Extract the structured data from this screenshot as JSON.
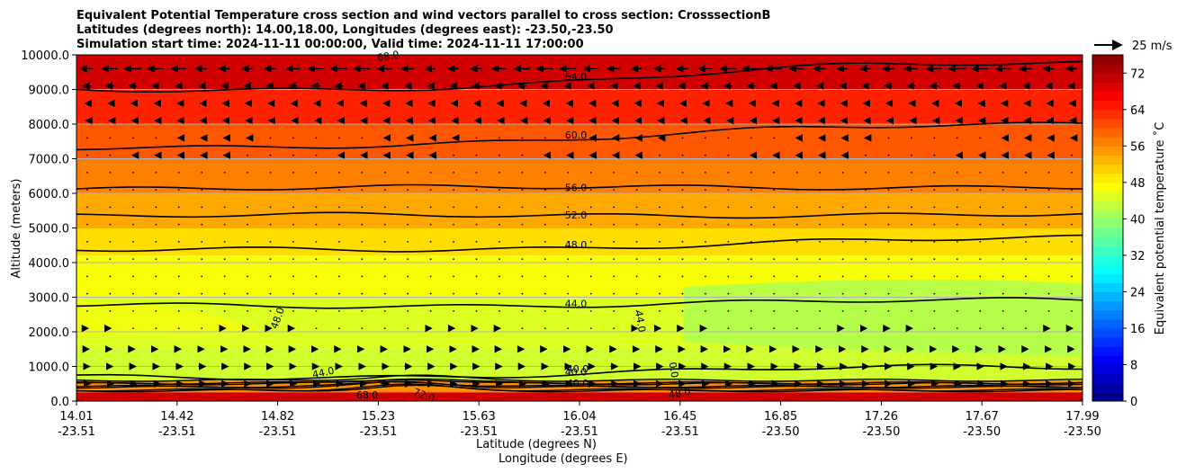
{
  "chart_data": {
    "type": "contourf",
    "title_lines": [
      "Equivalent Potential Temperature cross section and wind vectors parallel to cross section: CrosssectionB",
      "Latitudes (degrees north): 14.00,18.00, Longitudes (degrees east): -23.50,-23.50",
      "Simulation start time: 2024-11-11 00:00:00, Valid time: 2024-11-11 17:00:00"
    ],
    "xlabel_lines": [
      "Latitude (degrees N)",
      "Longitude (degrees E)"
    ],
    "ylabel": "Altitude (meters)",
    "ylim": [
      0,
      10000
    ],
    "y_ticks": [
      0,
      1000,
      2000,
      3000,
      4000,
      5000,
      6000,
      7000,
      8000,
      9000,
      10000
    ],
    "y_tick_labels": [
      "0.0",
      "1000.0",
      "2000.0",
      "3000.0",
      "4000.0",
      "5000.0",
      "6000.0",
      "7000.0",
      "8000.0",
      "9000.0",
      "10000.0"
    ],
    "x_ticks": [
      {
        "lat": "14.01",
        "lon": "-23.51"
      },
      {
        "lat": "14.42",
        "lon": "-23.51"
      },
      {
        "lat": "14.82",
        "lon": "-23.51"
      },
      {
        "lat": "15.23",
        "lon": "-23.51"
      },
      {
        "lat": "15.63",
        "lon": "-23.51"
      },
      {
        "lat": "16.04",
        "lon": "-23.51"
      },
      {
        "lat": "16.45",
        "lon": "-23.51"
      },
      {
        "lat": "16.85",
        "lon": "-23.50"
      },
      {
        "lat": "17.26",
        "lon": "-23.50"
      },
      {
        "lat": "17.67",
        "lon": "-23.50"
      },
      {
        "lat": "17.99",
        "lon": "-23.50"
      }
    ],
    "colorbar": {
      "label": "Equivalent potential temperature $^\\circ$C",
      "label_text": "Equivalent potential temperature ˚C",
      "range": [
        0,
        76
      ],
      "ticks": [
        0,
        8,
        16,
        24,
        32,
        40,
        48,
        56,
        64,
        72
      ],
      "colormap": "jet"
    },
    "quiver_key": {
      "label": "25 m/s",
      "speed": 25
    },
    "contours": [
      {
        "level": 64,
        "label": "64.0",
        "alt_left": 9000,
        "alt_right": 9800
      },
      {
        "level": 60,
        "label": "60.0",
        "alt_left": 7350,
        "alt_right": 8050
      },
      {
        "level": 56,
        "label": "56.0",
        "alt_left": 6150,
        "alt_right": 6200
      },
      {
        "level": 52,
        "label": "52.0",
        "alt_left": 5350,
        "alt_right": 5400
      },
      {
        "level": 48,
        "label": "48.0",
        "alt_left": 4350,
        "alt_right": 4700
      },
      {
        "level": 44,
        "label": "44.0",
        "alt_left": 2750,
        "alt_right": 2900
      },
      {
        "level": 40,
        "label": "40.0",
        "alt_left": 700,
        "alt_right": 1000
      }
    ],
    "contour_labels_extra": [
      "68.0",
      "48.0",
      "44.0",
      "40.0",
      "44.0",
      "0.0",
      "40.0",
      "68.0",
      "72.0",
      "48.0"
    ],
    "field_bands": [
      {
        "alt_top": 10000,
        "value": 70
      },
      {
        "alt_top": 9000,
        "value": 64
      },
      {
        "alt_top": 8000,
        "value": 60
      },
      {
        "alt_top": 7000,
        "value": 57
      },
      {
        "alt_top": 6000,
        "value": 54
      },
      {
        "alt_top": 5000,
        "value": 50
      },
      {
        "alt_top": 4200,
        "value": 47
      },
      {
        "alt_top": 3000,
        "value": 45
      },
      {
        "alt_top": 1500,
        "value": 44
      },
      {
        "alt_top": 600,
        "value": 56
      },
      {
        "alt_top": 250,
        "value": 70
      }
    ],
    "wind_levels": [
      {
        "alt": 9600,
        "u": -12
      },
      {
        "alt": 9100,
        "u": -6
      },
      {
        "alt": 8600,
        "u": -3
      },
      {
        "alt": 8100,
        "u": -2
      },
      {
        "alt": 7600,
        "u": -1
      },
      {
        "alt": 7100,
        "u": -1
      },
      {
        "alt": 6600,
        "u": -0.5
      },
      {
        "alt": 6100,
        "u": -0.5
      },
      {
        "alt": 5600,
        "u": -0.5
      },
      {
        "alt": 5100,
        "u": 0
      },
      {
        "alt": 4600,
        "u": 0
      },
      {
        "alt": 4100,
        "u": 0
      },
      {
        "alt": 3600,
        "u": 0
      },
      {
        "alt": 3100,
        "u": 0
      },
      {
        "alt": 2600,
        "u": 0.5
      },
      {
        "alt": 2100,
        "u": 1
      },
      {
        "alt": 1500,
        "u": 3
      },
      {
        "alt": 1000,
        "u": 5
      },
      {
        "alt": 500,
        "u": 6
      }
    ],
    "grid": true
  }
}
